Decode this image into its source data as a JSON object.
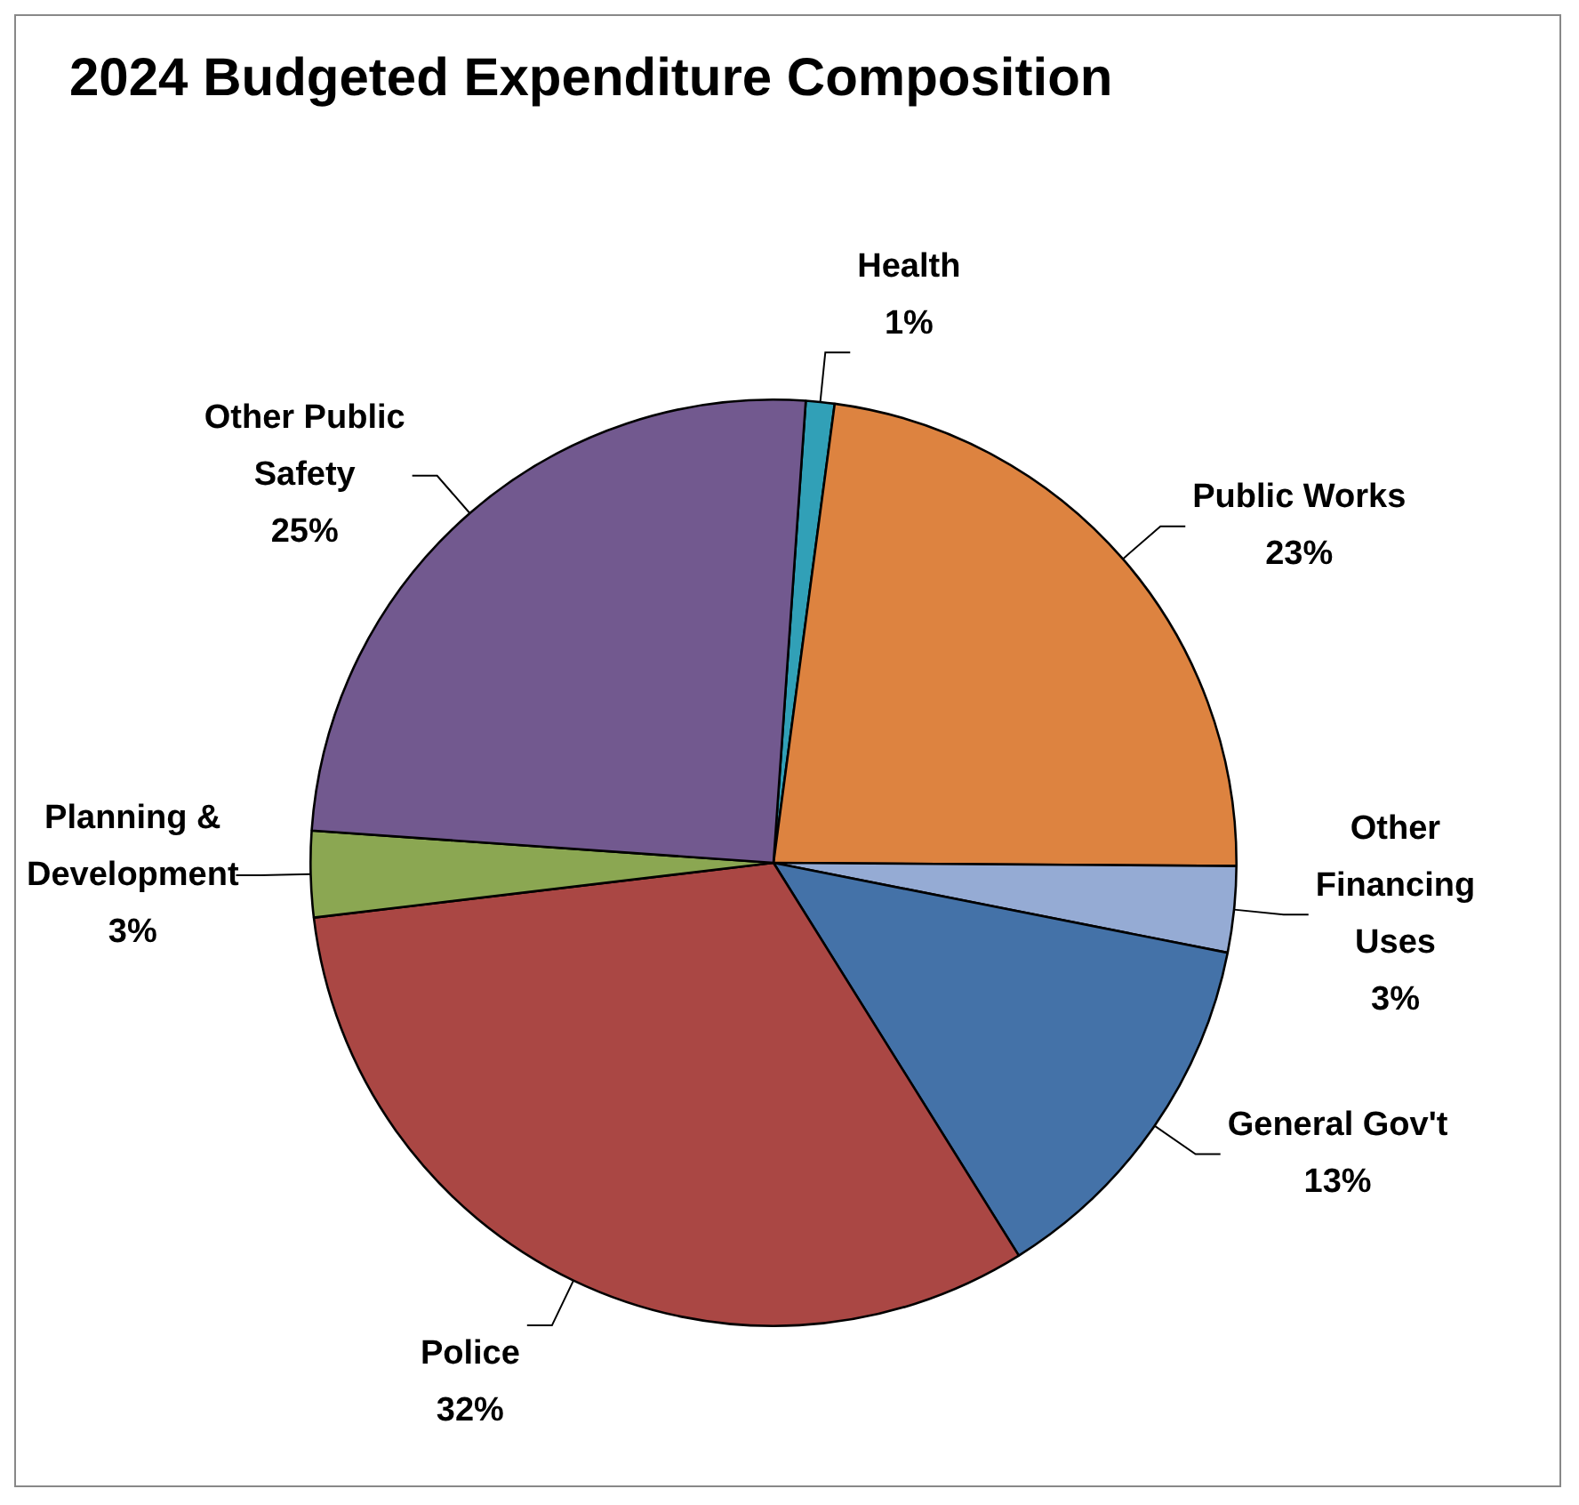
{
  "chart_data": {
    "type": "pie",
    "title": "2024 Budgeted Expenditure Composition",
    "categories": [
      "Health",
      "Public Works",
      "Other Financing Uses",
      "General Gov't",
      "Police",
      "Planning & Development",
      "Other Public Safety"
    ],
    "values": [
      1,
      23,
      3,
      13,
      32,
      3,
      25
    ],
    "value_labels": [
      "1%",
      "23%",
      "3%",
      "13%",
      "32%",
      "3%",
      "25%"
    ],
    "colors": [
      "#31a0b7",
      "#dd8340",
      "#95abd4",
      "#4472a8",
      "#aa4744",
      "#8ba752",
      "#72598f"
    ],
    "legend": false
  }
}
